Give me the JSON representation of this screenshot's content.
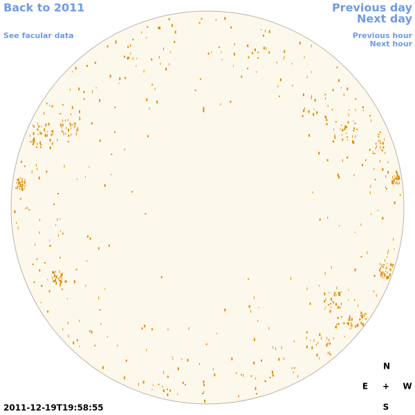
{
  "header": {
    "back_link": "Back to 2011",
    "facular_link": "See facular data",
    "previous_day": "Previous day",
    "next_day": "Next day",
    "previous_hour": "Previous hour",
    "next_hour": "Next hour"
  },
  "timestamp": "2011-12-19T19:58:55",
  "compass": {
    "north": "N",
    "east": "E",
    "center": "+",
    "west": "W",
    "south": "S"
  }
}
